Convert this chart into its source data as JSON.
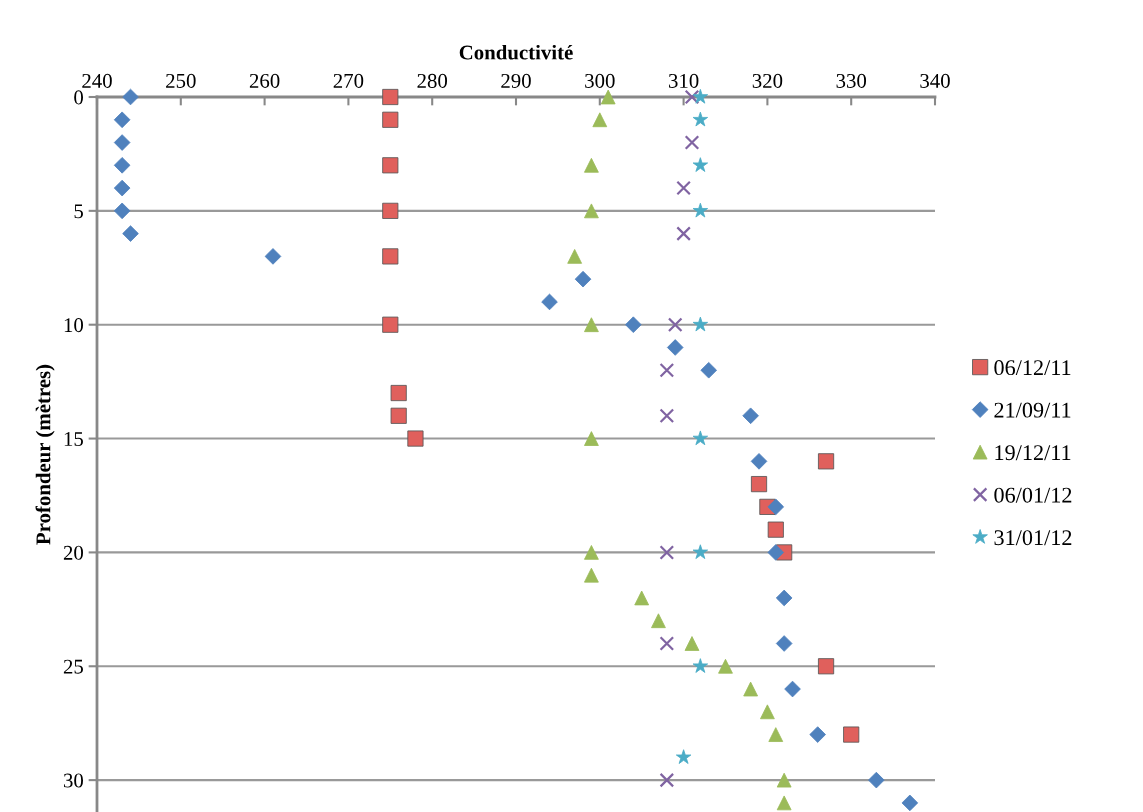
{
  "chart_data": {
    "type": "scatter",
    "xlabel": "Conductivité",
    "ylabel": "Profondeur (mètres)",
    "xlim": [
      240,
      340
    ],
    "xticks": [
      240,
      250,
      260,
      270,
      280,
      290,
      300,
      310,
      320,
      330,
      340
    ],
    "ylim": [
      31.4,
      0
    ],
    "yticks": [
      0,
      5,
      10,
      15,
      20,
      25,
      30
    ],
    "grid": "y",
    "legend": "right",
    "series": [
      {
        "name": "06/12/11",
        "color": "#e0605c",
        "marker": "square",
        "x": [
          275,
          275,
          275,
          275,
          275,
          275,
          276,
          276,
          278,
          327,
          319,
          320,
          321,
          322,
          327,
          330
        ],
        "values": [
          0,
          1,
          3,
          5,
          7,
          10,
          13,
          14,
          15,
          16,
          17,
          18,
          19,
          20,
          25,
          28
        ]
      },
      {
        "name": "21/09/11",
        "color": "#4f81bd",
        "marker": "diamond",
        "x": [
          244,
          243,
          243,
          243,
          243,
          243,
          244,
          261,
          298,
          294,
          304,
          309,
          313,
          318,
          319,
          321,
          321,
          322,
          322,
          323,
          326,
          333,
          337
        ],
        "values": [
          0,
          1,
          2,
          3,
          4,
          5,
          6,
          7,
          8,
          9,
          10,
          11,
          12,
          14,
          16,
          18,
          20,
          22,
          24,
          26,
          28,
          30,
          31
        ]
      },
      {
        "name": "19/12/11",
        "color": "#9bbb59",
        "marker": "triangle",
        "x": [
          301,
          300,
          299,
          299,
          297,
          299,
          299,
          299,
          299,
          305,
          307,
          311,
          315,
          318,
          320,
          321,
          322,
          322
        ],
        "values": [
          0,
          1,
          3,
          5,
          7,
          10,
          15,
          20,
          21,
          22,
          23,
          24,
          25,
          26,
          27,
          28,
          30,
          31
        ]
      },
      {
        "name": "06/01/12",
        "color": "#8064a2",
        "marker": "cross",
        "x": [
          311,
          311,
          310,
          310,
          309,
          308,
          308,
          308,
          308,
          308
        ],
        "values": [
          0,
          2,
          4,
          6,
          10,
          12,
          14,
          20,
          24,
          30
        ]
      },
      {
        "name": "31/01/12",
        "color": "#4bacc6",
        "marker": "star",
        "x": [
          312,
          312,
          312,
          312,
          312,
          312,
          312,
          312,
          310
        ],
        "values": [
          0,
          1,
          3,
          5,
          10,
          15,
          20,
          25,
          29
        ]
      }
    ]
  }
}
